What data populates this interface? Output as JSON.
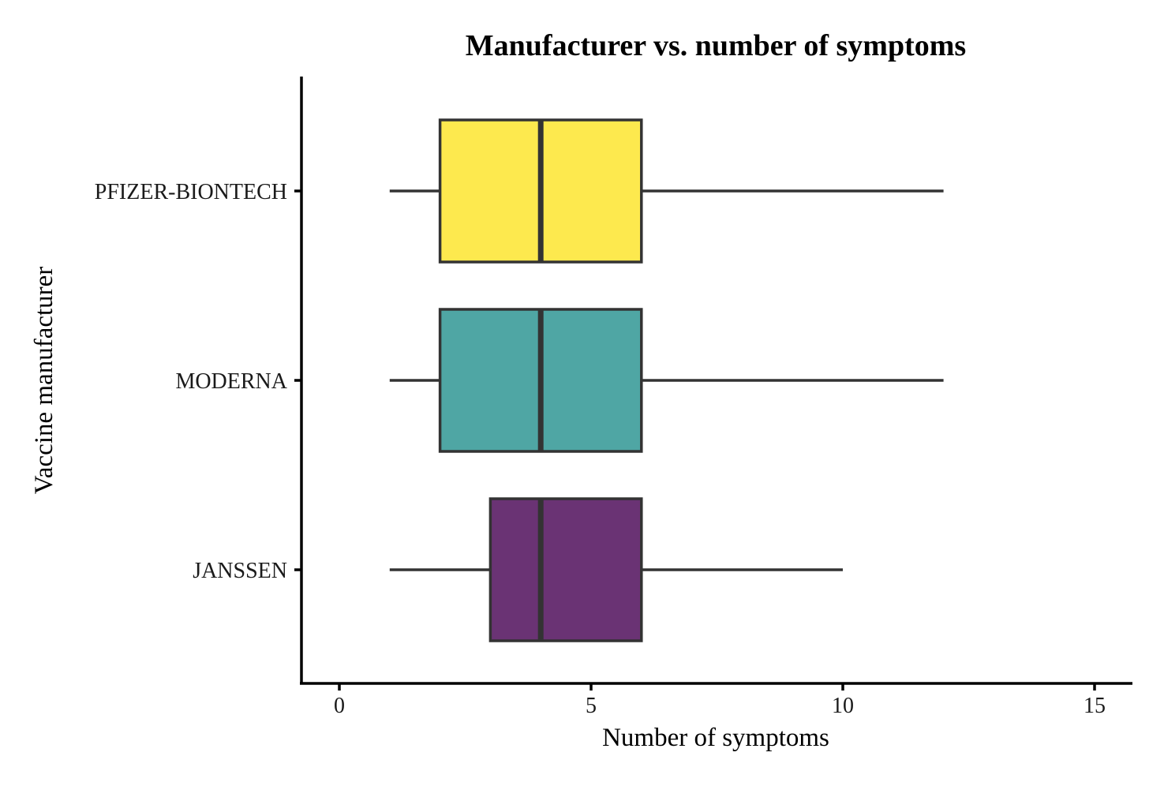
{
  "chart_data": {
    "type": "boxplot",
    "orientation": "horizontal",
    "title": "Manufacturer vs. number of symptoms",
    "xlabel": "Number of symptoms",
    "ylabel": "Vaccine manufacturer",
    "xlim": [
      -0.75,
      15.8
    ],
    "xticks": [
      0,
      5,
      10,
      15
    ],
    "xtick_labels": [
      "0",
      "5",
      "10",
      "15"
    ],
    "grid": false,
    "legend": "none",
    "categories": [
      {
        "name": "PFIZER-BIONTECH",
        "min": 1,
        "q1": 2,
        "median": 4,
        "q3": 6,
        "max": 12,
        "color": "#fde94e"
      },
      {
        "name": "MODERNA",
        "min": 1,
        "q1": 2,
        "median": 4,
        "q3": 6,
        "max": 12,
        "color": "#4fa6a4"
      },
      {
        "name": "JANSSEN",
        "min": 1,
        "q1": 3,
        "median": 4,
        "q3": 6,
        "max": 10,
        "color": "#6a3374"
      }
    ]
  }
}
